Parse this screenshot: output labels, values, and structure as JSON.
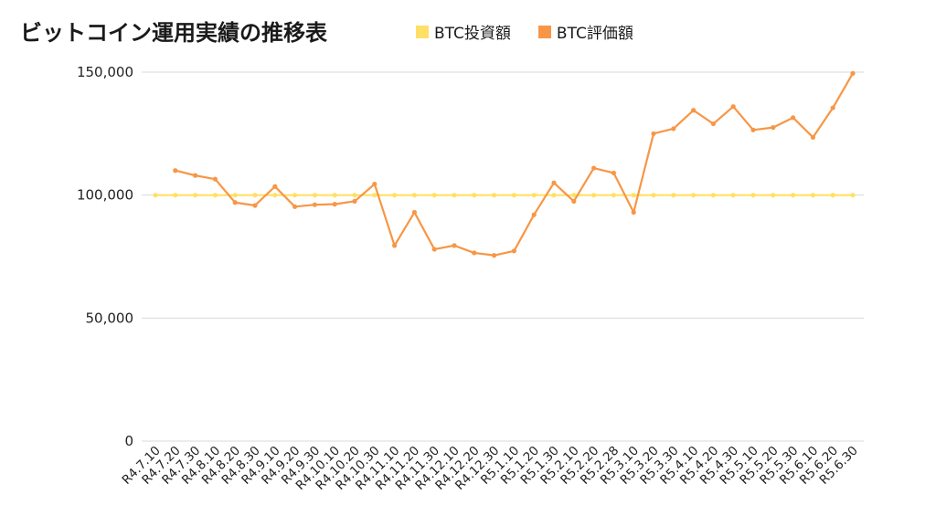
{
  "chart_data": {
    "type": "line",
    "title": "ビットコイン運用実績の推移表",
    "categories": [
      "R4.7.10",
      "R4.7.20",
      "R4.7.30",
      "R4.8.10",
      "R4.8.20",
      "R4.8.30",
      "R4.9.10",
      "R4.9.20",
      "R4.9.30",
      "R4.10.10",
      "R4.10.20",
      "R4.10.30",
      "R4.11.10",
      "R4.11.20",
      "R4.11.30",
      "R4.12.10",
      "R4.12.20",
      "R4.12.30",
      "R5.1.10",
      "R5.1.20",
      "R5.1.30",
      "R5.2.10",
      "R5.2.20",
      "R5.2.28",
      "R5.3.10",
      "R5.3.20",
      "R5.3.30",
      "R5.4.10",
      "R5.4.20",
      "R5.4.30",
      "R5.5.10",
      "R5.5.20",
      "R5.5.30",
      "R5.6.10",
      "R5.6.20",
      "R5.6.30"
    ],
    "series": [
      {
        "name": "BTC投資額",
        "color": "#FFE066",
        "values": [
          100000,
          100000,
          100000,
          100000,
          100000,
          100000,
          100000,
          100000,
          100000,
          100000,
          100000,
          100000,
          100000,
          100000,
          100000,
          100000,
          100000,
          100000,
          100000,
          100000,
          100000,
          100000,
          100000,
          100000,
          100000,
          100000,
          100000,
          100000,
          100000,
          100000,
          100000,
          100000,
          100000,
          100000,
          100000,
          100000
        ]
      },
      {
        "name": "BTC評価額",
        "color": "#F79646",
        "values": [
          null,
          110000,
          108000,
          106500,
          97000,
          95800,
          103500,
          95300,
          96100,
          96300,
          97500,
          104500,
          79500,
          93000,
          78000,
          79500,
          76500,
          75500,
          77300,
          92000,
          105000,
          97500,
          111000,
          109000,
          93000,
          125000,
          127000,
          134500,
          129000,
          136000,
          126500,
          127500,
          131500,
          123500,
          135500,
          149500
        ]
      }
    ],
    "ylim": [
      0,
      150000
    ],
    "yticks": [
      0,
      50000,
      100000,
      150000
    ],
    "ytick_labels": [
      "0",
      "50,000",
      "100,000",
      "150,000"
    ],
    "grid": true,
    "legend_position": "top"
  }
}
